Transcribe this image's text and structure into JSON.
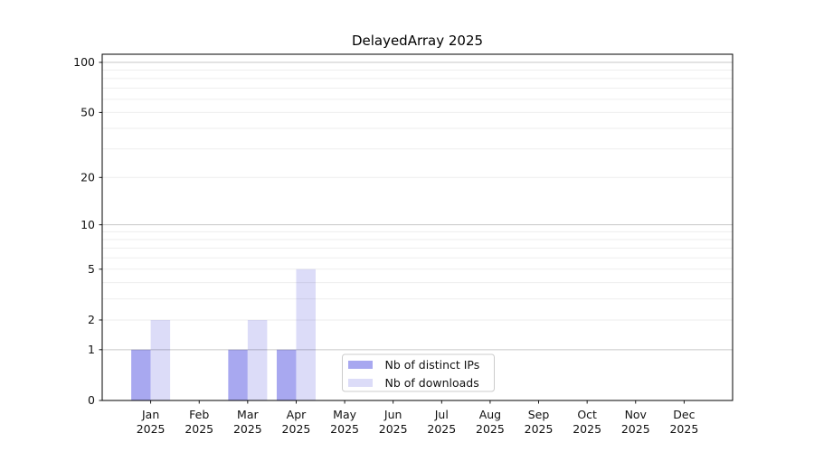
{
  "chart_data": {
    "type": "bar",
    "title": "DelayedArray 2025",
    "categories": [
      "Jan",
      "Feb",
      "Mar",
      "Apr",
      "May",
      "Jun",
      "Jul",
      "Aug",
      "Sep",
      "Oct",
      "Nov",
      "Dec"
    ],
    "category_sub_label": "2025",
    "series": [
      {
        "name": "Nb of distinct IPs",
        "color": "#a8a8f0",
        "values": [
          1,
          0,
          1,
          1,
          0,
          0,
          0,
          0,
          0,
          0,
          0,
          0
        ]
      },
      {
        "name": "Nb of downloads",
        "color": "#dcdcf8",
        "values": [
          2,
          0,
          2,
          5,
          0,
          0,
          0,
          0,
          0,
          0,
          0,
          0
        ]
      }
    ],
    "yscale": "log1p",
    "ylim": [
      0,
      100
    ],
    "yticks": [
      0,
      1,
      2,
      5,
      10,
      20,
      50,
      100
    ],
    "grid": {
      "major_levels": [
        1,
        10,
        100
      ],
      "minor_levels": [
        2,
        3,
        4,
        5,
        6,
        7,
        8,
        9,
        20,
        30,
        40,
        50,
        60,
        70,
        80,
        90
      ],
      "major_color": "rgba(0,0,0,0.22)",
      "minor_color": "rgba(0,0,0,0.065)"
    },
    "legend": {
      "position": "bottom-center"
    },
    "axis_color": "#000000",
    "text_color": "#111111"
  }
}
